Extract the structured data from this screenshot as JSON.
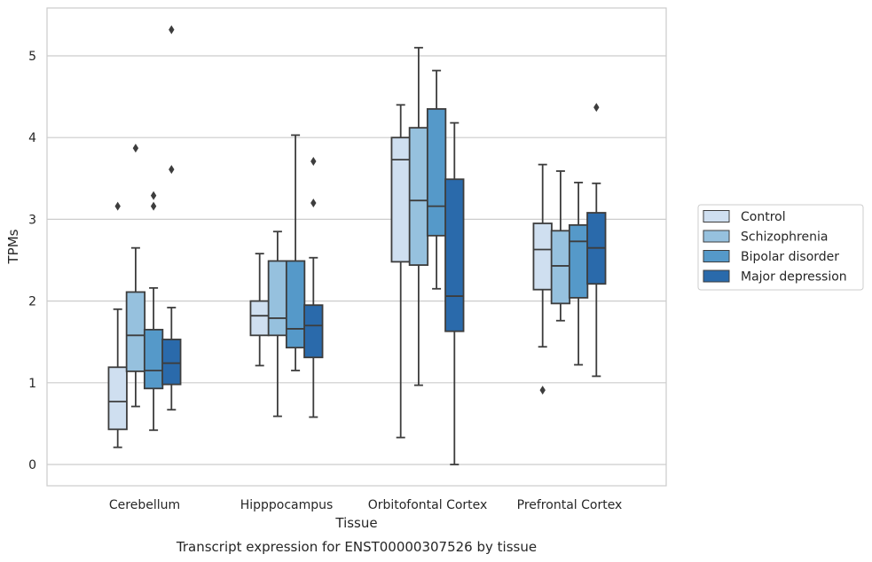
{
  "chart_data": {
    "type": "box",
    "caption": "Transcript expression for ENST00000307526 by tissue",
    "xlabel": "Tissue",
    "ylabel": "TPMs",
    "ylim": [
      -0.25,
      5.6
    ],
    "yticks": [
      0,
      1,
      2,
      3,
      4,
      5
    ],
    "grid": "horizontal",
    "legend_position": "right",
    "categories": [
      "Cerebellum",
      "Hipppocampus",
      "Orbitofontal Cortex",
      "Prefrontal Cortex"
    ],
    "series": [
      {
        "name": "Control",
        "color": "#cfdff0",
        "boxes": [
          {
            "whisker_low": 0.21,
            "q1": 0.43,
            "median": 0.77,
            "q3": 1.19,
            "whisker_high": 1.9,
            "outliers": [
              3.16
            ]
          },
          {
            "whisker_low": 1.21,
            "q1": 1.58,
            "median": 1.82,
            "q3": 2.0,
            "whisker_high": 2.58,
            "outliers": []
          },
          {
            "whisker_low": 0.33,
            "q1": 2.48,
            "median": 3.73,
            "q3": 4.0,
            "whisker_high": 4.4,
            "outliers": []
          },
          {
            "whisker_low": 1.44,
            "q1": 2.14,
            "median": 2.63,
            "q3": 2.95,
            "whisker_high": 3.67,
            "outliers": [
              0.91
            ]
          }
        ]
      },
      {
        "name": "Schizophrenia",
        "color": "#96c1de",
        "boxes": [
          {
            "whisker_low": 0.71,
            "q1": 1.14,
            "median": 1.58,
            "q3": 2.11,
            "whisker_high": 2.65,
            "outliers": [
              3.87
            ]
          },
          {
            "whisker_low": 0.59,
            "q1": 1.58,
            "median": 1.79,
            "q3": 2.49,
            "whisker_high": 2.85,
            "outliers": []
          },
          {
            "whisker_low": 0.97,
            "q1": 2.44,
            "median": 3.23,
            "q3": 4.12,
            "whisker_high": 5.1,
            "outliers": []
          },
          {
            "whisker_low": 1.76,
            "q1": 1.97,
            "median": 2.43,
            "q3": 2.86,
            "whisker_high": 3.59,
            "outliers": []
          }
        ]
      },
      {
        "name": "Bipolar disorder",
        "color": "#5599c9",
        "boxes": [
          {
            "whisker_low": 0.42,
            "q1": 0.93,
            "median": 1.15,
            "q3": 1.65,
            "whisker_high": 2.16,
            "outliers": [
              3.16,
              3.29
            ]
          },
          {
            "whisker_low": 1.15,
            "q1": 1.43,
            "median": 1.66,
            "q3": 2.49,
            "whisker_high": 4.03,
            "outliers": []
          },
          {
            "whisker_low": 2.15,
            "q1": 2.8,
            "median": 3.16,
            "q3": 4.35,
            "whisker_high": 4.82,
            "outliers": []
          },
          {
            "whisker_low": 1.22,
            "q1": 2.04,
            "median": 2.73,
            "q3": 2.93,
            "whisker_high": 3.45,
            "outliers": []
          }
        ]
      },
      {
        "name": "Major depression",
        "color": "#2a6aab",
        "boxes": [
          {
            "whisker_low": 0.67,
            "q1": 0.98,
            "median": 1.24,
            "q3": 1.53,
            "whisker_high": 1.92,
            "outliers": [
              3.61,
              5.32
            ]
          },
          {
            "whisker_low": 0.58,
            "q1": 1.31,
            "median": 1.7,
            "q3": 1.95,
            "whisker_high": 2.53,
            "outliers": [
              3.2,
              3.71
            ]
          },
          {
            "whisker_low": 0.0,
            "q1": 1.63,
            "median": 2.06,
            "q3": 3.49,
            "whisker_high": 4.18,
            "outliers": []
          },
          {
            "whisker_low": 1.08,
            "q1": 2.21,
            "median": 2.65,
            "q3": 3.08,
            "whisker_high": 3.44,
            "outliers": [
              4.37
            ]
          }
        ]
      }
    ]
  }
}
